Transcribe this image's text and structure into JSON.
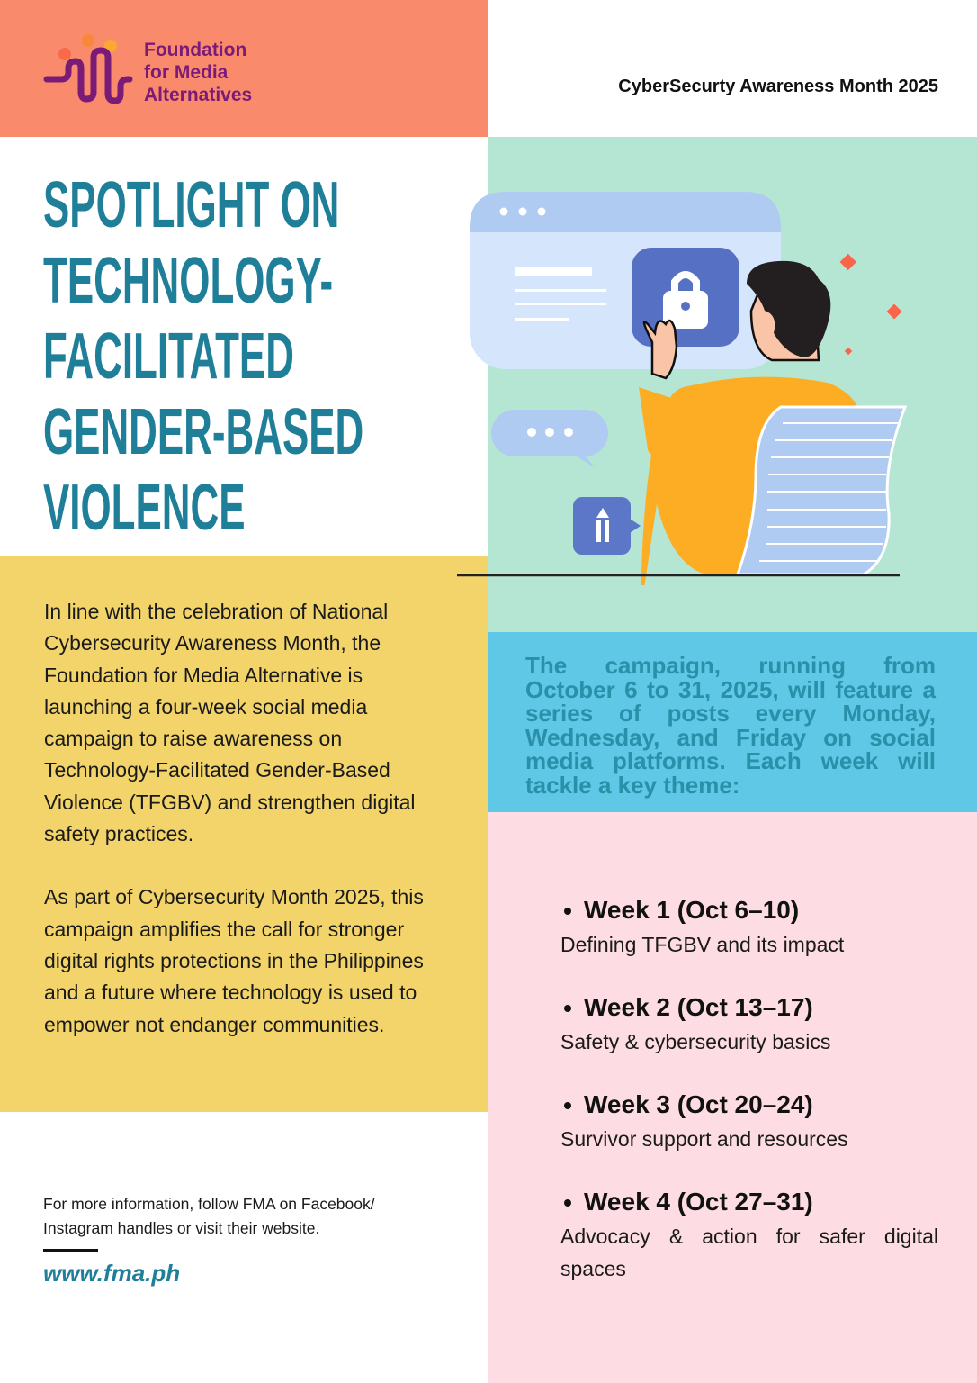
{
  "header": {
    "logo_text": [
      "Foundation",
      "for Media",
      "Alternatives"
    ],
    "event": "CyberSecurty Awareness Month 2025"
  },
  "title": [
    "SPOTLIGHT ON",
    "TECHNOLOGY-",
    "FACILITATED",
    "GENDER-BASED",
    "VIOLENCE"
  ],
  "intro": {
    "p1": "In line with the celebration of National Cybersecurity Awareness Month, the Foundation for Media Alternative is launching a four-week social media campaign to raise awareness on Technology-Facilitated Gender-Based Violence (TFGBV) and strengthen digital safety practices.",
    "p2": "As part of Cybersecurity Month 2025, this campaign amplifies the call for stronger digital rights protections in the Philippines and a future where technology is used to empower not endanger communities."
  },
  "campaign": "The campaign, running from October 6 to 31, 2025, will feature a series of posts every Monday, Wednesday, and Friday on social media platforms. Each week will tackle a key theme:",
  "weeks": [
    {
      "label": "Week 1 (Oct 6–10)",
      "theme": "Defining TFGBV and its impact"
    },
    {
      "label": "Week 2 (Oct 13–17)",
      "theme": "Safety & cybersecurity basics"
    },
    {
      "label": "Week 3 (Oct 20–24)",
      "theme": "Survivor support and resources"
    },
    {
      "label": "Week 4 (Oct 27–31)",
      "theme": "Advocacy & action for safer digital spaces"
    }
  ],
  "footer": {
    "more": "For more information, follow FMA on Facebook/ Instagram handles or visit their website.",
    "url": "www.fma.ph"
  },
  "colors": {
    "header": "#f98a6b",
    "title": "#1f7f99",
    "yellow": "#f2d46a",
    "mint": "#b5e6d3",
    "blue": "#5ec8e6",
    "pink": "#fddde3",
    "logo": "#7a1b78"
  }
}
